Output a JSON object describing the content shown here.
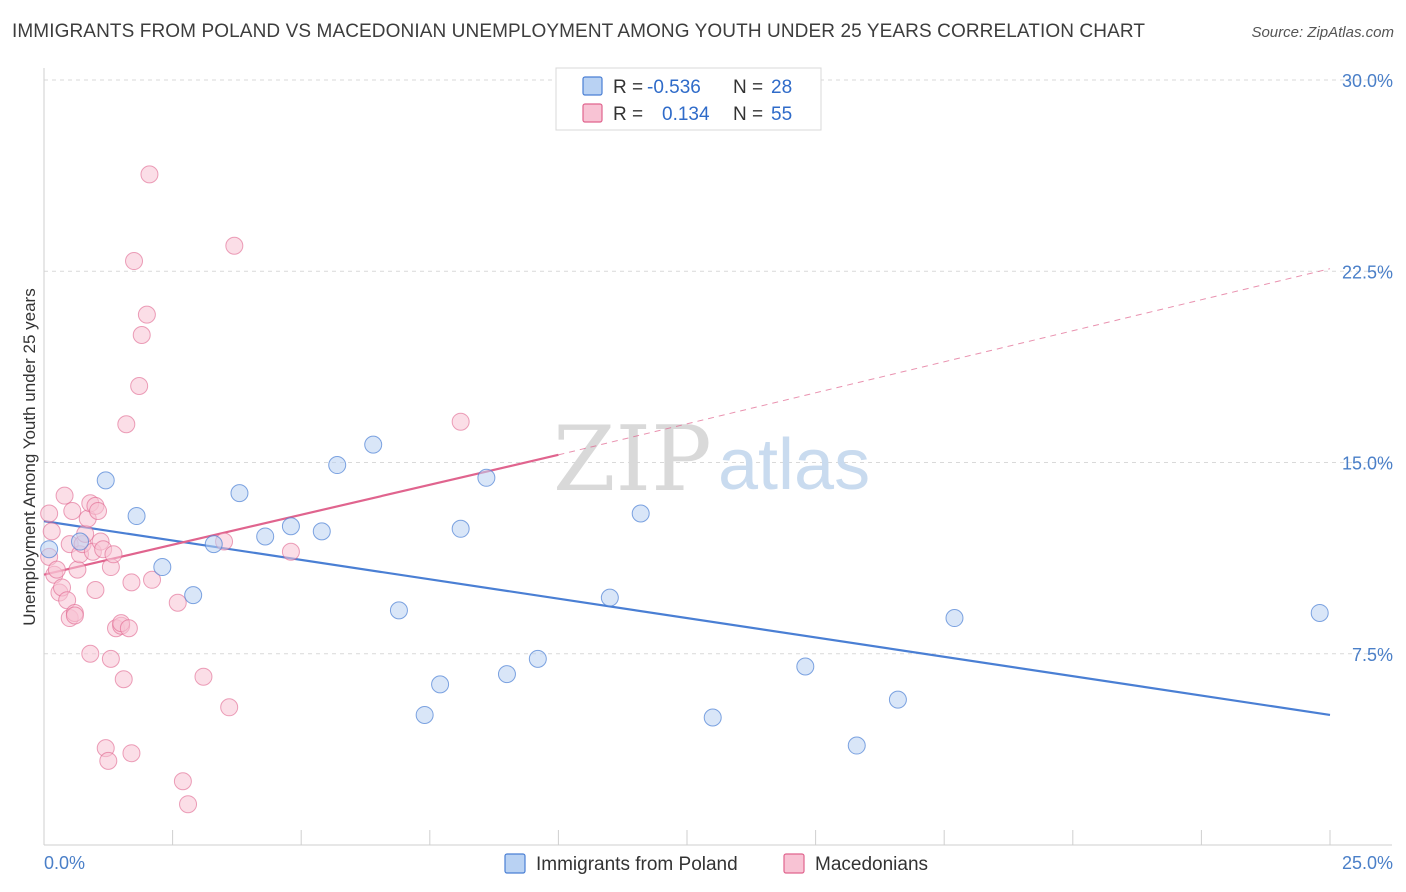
{
  "title": "IMMIGRANTS FROM POLAND VS MACEDONIAN UNEMPLOYMENT AMONG YOUTH UNDER 25 YEARS CORRELATION CHART",
  "source": "Source: ZipAtlas.com",
  "watermark": {
    "zip": "ZIP",
    "atlas": "atlas"
  },
  "colors": {
    "poland": "#4a7fd4",
    "poland_fill": "#b9d2f3",
    "macedonians": "#e0648e",
    "macedonians_fill": "#f8c3d4",
    "tick": "#4a7fc8"
  },
  "legend": {
    "r_label": "R =",
    "n_label": "N =",
    "poland": {
      "r": "-0.536",
      "n": "28"
    },
    "macedonians": {
      "r": "0.134",
      "n": "55"
    }
  },
  "bottom_legend": [
    "Immigrants from Poland",
    "Macedonians"
  ],
  "chart_data": {
    "type": "scatter",
    "xlabel": "",
    "ylabel": "Unemployment Among Youth under 25 years",
    "xlim": [
      0,
      25
    ],
    "ylim": [
      0,
      30
    ],
    "x_tick_labels": [
      "0.0%",
      "25.0%"
    ],
    "y_tick_labels": [
      "7.5%",
      "15.0%",
      "22.5%",
      "30.0%"
    ],
    "y_ticks": [
      7.5,
      15,
      22.5,
      30
    ],
    "grid": true,
    "series": [
      {
        "name": "Immigrants from Poland",
        "points": [
          [
            0.1,
            11.6
          ],
          [
            0.7,
            11.9
          ],
          [
            1.2,
            14.3
          ],
          [
            1.8,
            12.9
          ],
          [
            2.3,
            10.9
          ],
          [
            2.9,
            9.8
          ],
          [
            3.3,
            11.8
          ],
          [
            3.8,
            13.8
          ],
          [
            4.3,
            12.1
          ],
          [
            4.8,
            12.5
          ],
          [
            5.4,
            12.3
          ],
          [
            5.7,
            14.9
          ],
          [
            6.4,
            15.7
          ],
          [
            6.9,
            9.2
          ],
          [
            7.4,
            5.1
          ],
          [
            7.7,
            6.3
          ],
          [
            8.1,
            12.4
          ],
          [
            8.6,
            14.4
          ],
          [
            9.0,
            6.7
          ],
          [
            9.6,
            7.3
          ],
          [
            11.0,
            9.7
          ],
          [
            11.6,
            13.0
          ],
          [
            13.0,
            5.0
          ],
          [
            14.8,
            7.0
          ],
          [
            15.8,
            3.9
          ],
          [
            16.6,
            5.7
          ],
          [
            17.7,
            8.9
          ],
          [
            24.8,
            9.1
          ]
        ],
        "trend": {
          "x": [
            0,
            25
          ],
          "y": [
            12.7,
            5.1
          ]
        }
      },
      {
        "name": "Macedonians",
        "points": [
          [
            0.1,
            11.3
          ],
          [
            0.1,
            13.0
          ],
          [
            0.15,
            12.3
          ],
          [
            0.2,
            10.6
          ],
          [
            0.25,
            10.8
          ],
          [
            0.3,
            9.9
          ],
          [
            0.35,
            10.1
          ],
          [
            0.4,
            13.7
          ],
          [
            0.45,
            9.6
          ],
          [
            0.5,
            11.8
          ],
          [
            0.5,
            8.9
          ],
          [
            0.55,
            13.1
          ],
          [
            0.6,
            9.1
          ],
          [
            0.6,
            9.0
          ],
          [
            0.65,
            10.8
          ],
          [
            0.7,
            11.4
          ],
          [
            0.75,
            11.8
          ],
          [
            0.8,
            12.2
          ],
          [
            0.85,
            12.8
          ],
          [
            0.9,
            13.4
          ],
          [
            0.9,
            7.5
          ],
          [
            0.95,
            11.5
          ],
          [
            1.0,
            10.0
          ],
          [
            1.0,
            13.3
          ],
          [
            1.05,
            13.1
          ],
          [
            1.1,
            11.9
          ],
          [
            1.15,
            11.6
          ],
          [
            1.2,
            3.8
          ],
          [
            1.25,
            3.3
          ],
          [
            1.3,
            10.9
          ],
          [
            1.3,
            7.3
          ],
          [
            1.35,
            11.4
          ],
          [
            1.4,
            8.5
          ],
          [
            1.5,
            8.6
          ],
          [
            1.5,
            8.7
          ],
          [
            1.55,
            6.5
          ],
          [
            1.6,
            16.5
          ],
          [
            1.65,
            8.5
          ],
          [
            1.7,
            10.3
          ],
          [
            1.7,
            3.6
          ],
          [
            1.75,
            22.9
          ],
          [
            1.85,
            18.0
          ],
          [
            1.9,
            20.0
          ],
          [
            2.0,
            20.8
          ],
          [
            2.05,
            26.3
          ],
          [
            2.1,
            10.4
          ],
          [
            2.6,
            9.5
          ],
          [
            2.7,
            2.5
          ],
          [
            2.8,
            1.6
          ],
          [
            3.1,
            6.6
          ],
          [
            3.5,
            11.9
          ],
          [
            3.6,
            5.4
          ],
          [
            3.7,
            23.5
          ],
          [
            4.8,
            11.5
          ],
          [
            8.1,
            16.6
          ]
        ],
        "trend": {
          "x": [
            0,
            10
          ],
          "y": [
            10.6,
            15.3
          ]
        },
        "trend_extension": {
          "x": [
            10,
            25
          ],
          "y": [
            15.3,
            22.6
          ]
        }
      }
    ]
  }
}
